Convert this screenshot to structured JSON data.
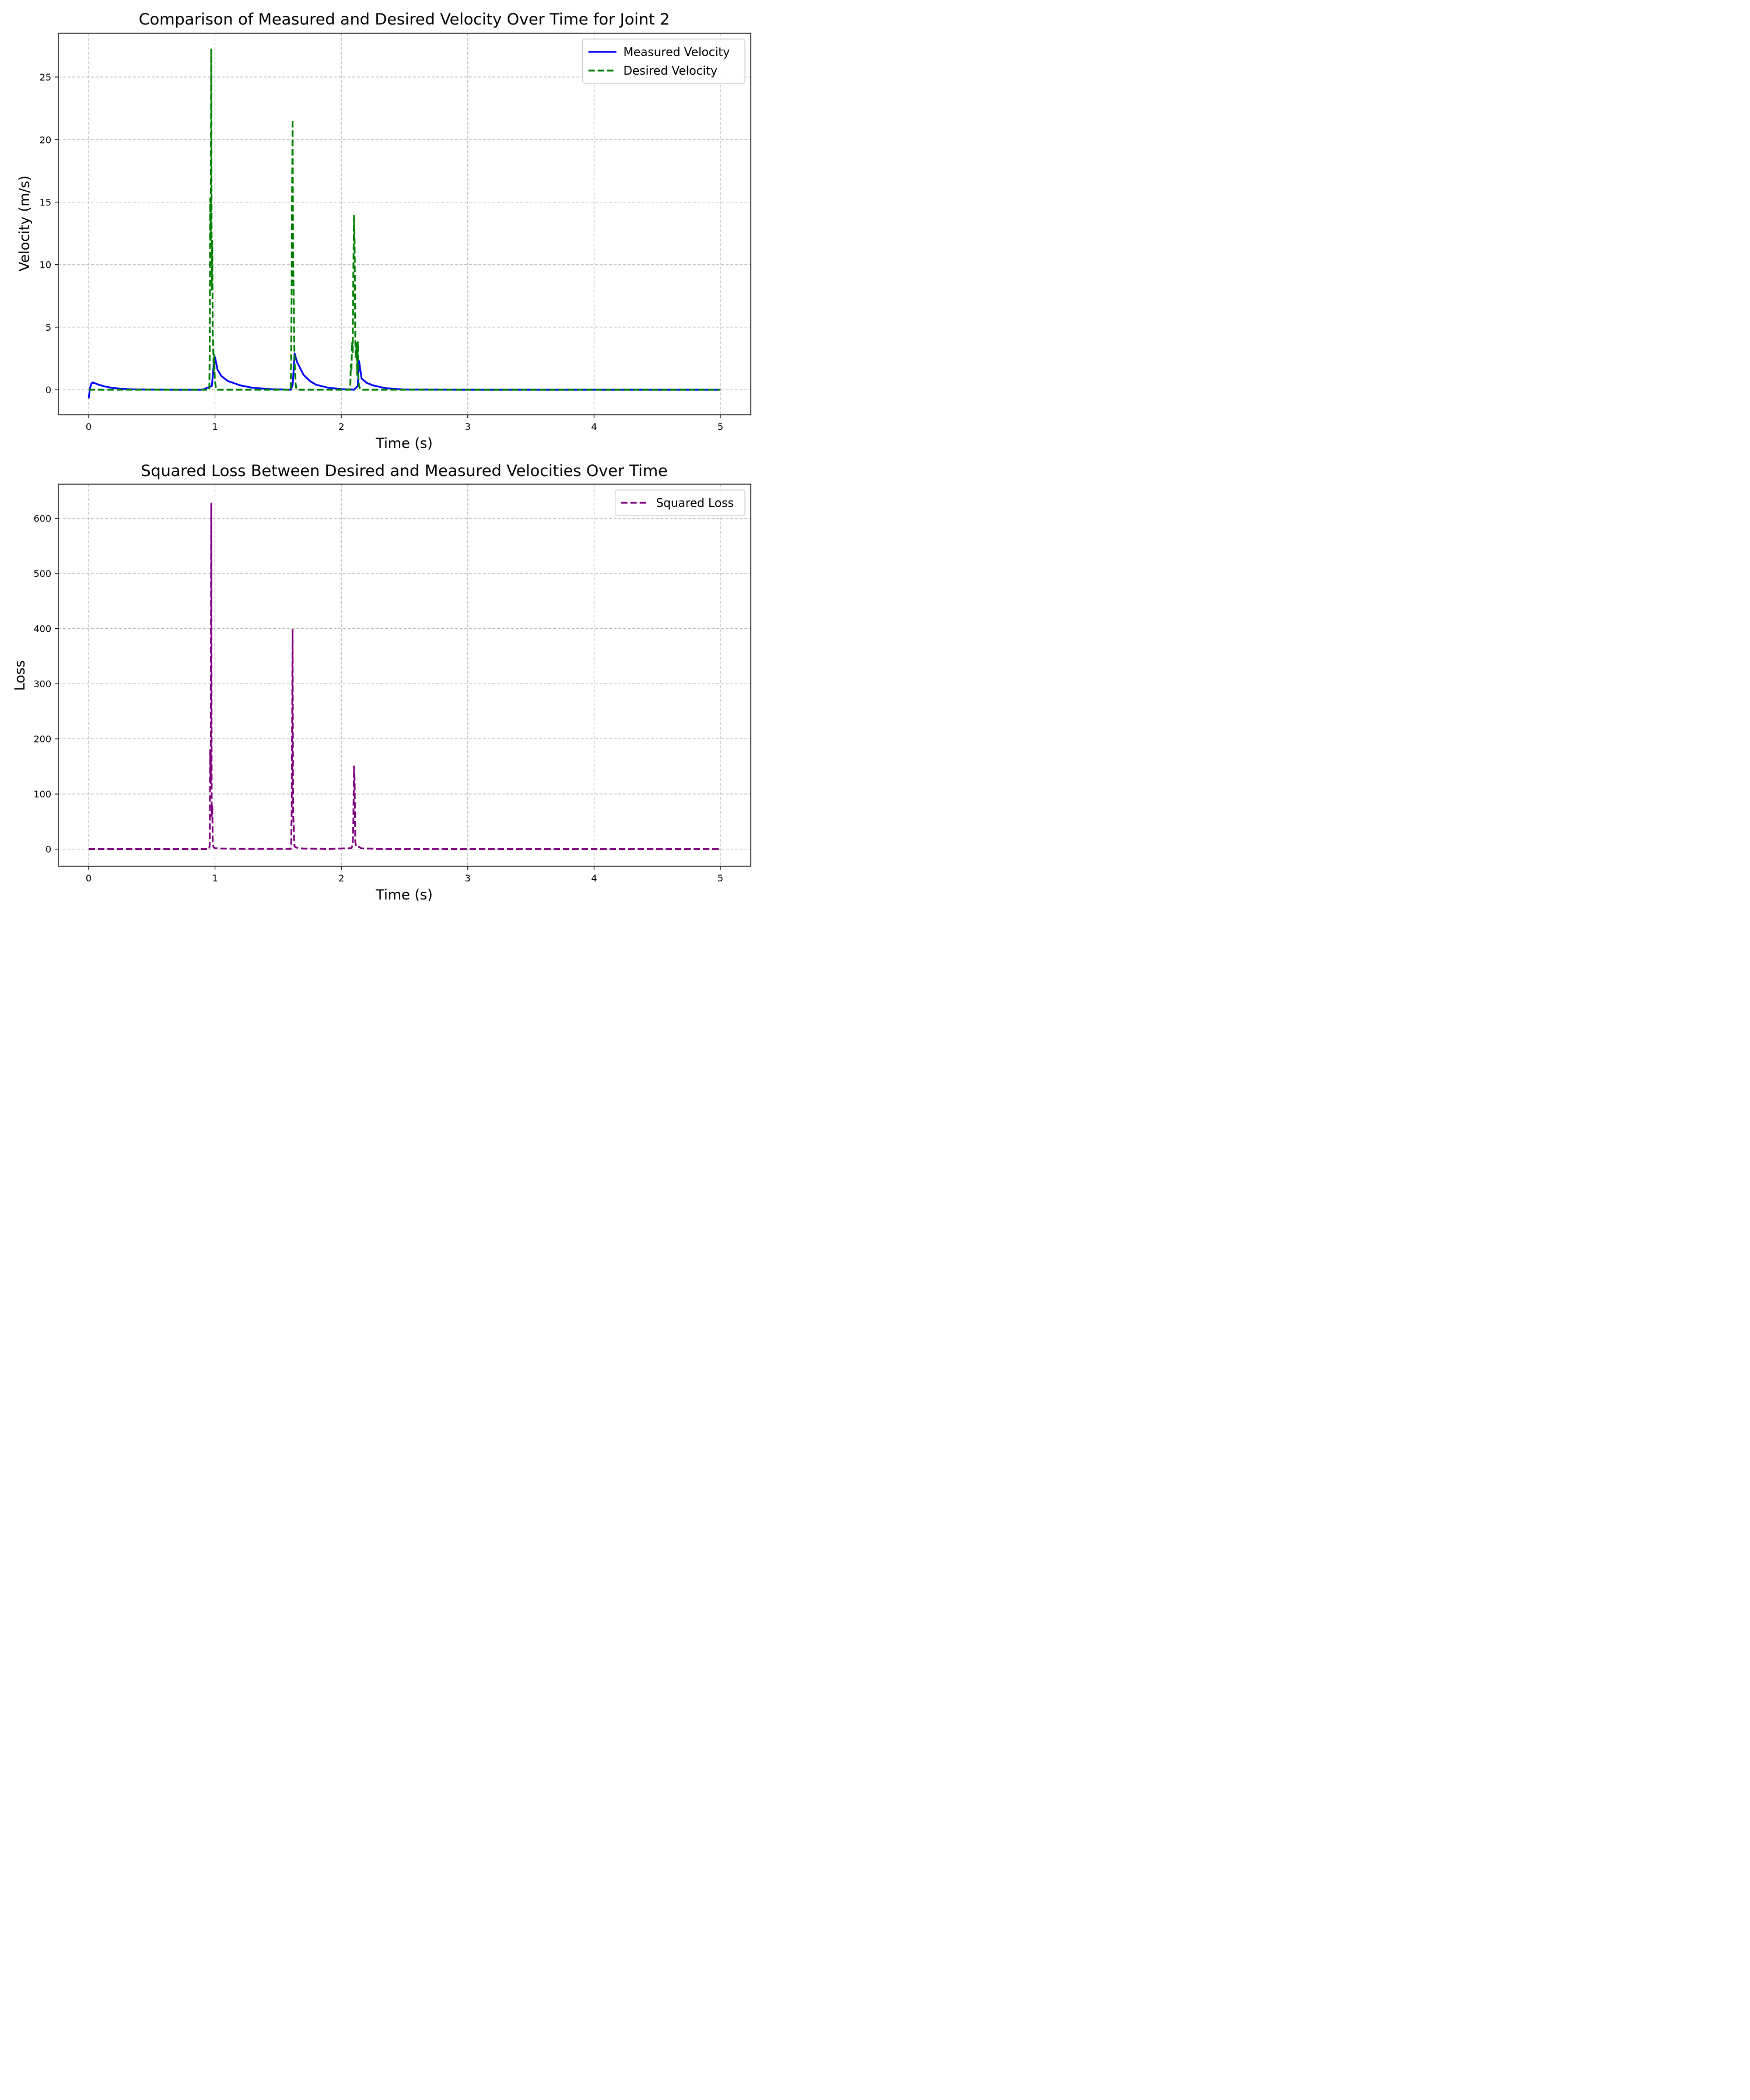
{
  "chart_data": [
    {
      "type": "line",
      "title": "Comparison of Measured and Desired Velocity Over Time for Joint 2",
      "xlabel": "Time (s)",
      "ylabel": "Velocity (m/s)",
      "xlim": [
        -0.24,
        5.24
      ],
      "ylim": [
        -2.0,
        28.5
      ],
      "xticks": [
        0,
        1,
        2,
        3,
        4,
        5
      ],
      "yticks": [
        0,
        5,
        10,
        15,
        20,
        25
      ],
      "grid": true,
      "legend": "top-right",
      "series": [
        {
          "name": "Measured Velocity",
          "color": "#0000ff",
          "style": "solid",
          "x": [
            0.0,
            0.01,
            0.02,
            0.03,
            0.05,
            0.08,
            0.12,
            0.18,
            0.25,
            0.35,
            0.5,
            0.7,
            0.9,
            0.975,
            0.99,
            1.0,
            1.02,
            1.05,
            1.1,
            1.2,
            1.3,
            1.45,
            1.6,
            1.615,
            1.63,
            1.65,
            1.7,
            1.75,
            1.8,
            1.9,
            2.0,
            2.1,
            2.13,
            2.14,
            2.16,
            2.2,
            2.25,
            2.35,
            2.5,
            3.0,
            4.0,
            5.0
          ],
          "y": [
            -0.7,
            0.1,
            0.45,
            0.58,
            0.52,
            0.4,
            0.28,
            0.16,
            0.08,
            0.03,
            0.01,
            0.0,
            0.0,
            0.3,
            2.0,
            2.6,
            1.6,
            1.1,
            0.7,
            0.35,
            0.15,
            0.04,
            0.0,
            0.4,
            2.9,
            2.2,
            1.2,
            0.7,
            0.4,
            0.15,
            0.05,
            0.0,
            0.3,
            2.3,
            0.9,
            0.55,
            0.35,
            0.12,
            0.02,
            0.0,
            0.0,
            0.0
          ]
        },
        {
          "name": "Desired Velocity",
          "color": "#008000",
          "style": "dashed",
          "x": [
            0.0,
            0.955,
            0.958,
            0.962,
            0.966,
            0.97,
            0.974,
            0.978,
            0.982,
            0.986,
            0.99,
            0.994,
            0.998,
            1.002,
            1.01,
            1.6,
            1.603,
            1.607,
            1.61,
            1.614,
            1.618,
            1.622,
            1.626,
            1.63,
            1.634,
            1.638,
            1.645,
            2.07,
            2.075,
            2.08,
            2.085,
            2.09,
            2.095,
            2.1,
            2.105,
            2.11,
            2.115,
            2.12,
            2.125,
            2.13,
            2.135,
            2.14,
            2.15,
            5.0
          ],
          "y": [
            0.0,
            0.0,
            3.0,
            15.3,
            11.9,
            27.2,
            8.0,
            11.9,
            4.5,
            3.5,
            1.5,
            2.8,
            1.0,
            0.5,
            0.0,
            0.0,
            3.0,
            8.9,
            15.8,
            21.6,
            10.5,
            7.8,
            4.5,
            2.2,
            1.2,
            0.5,
            0.0,
            0.0,
            2.0,
            1.5,
            3.8,
            3.0,
            9.2,
            13.9,
            11.8,
            3.8,
            2.5,
            3.8,
            1.2,
            3.8,
            1.0,
            0.3,
            0.0,
            0.0
          ]
        }
      ]
    },
    {
      "type": "line",
      "title": "Squared Loss Between Desired and Measured Velocities Over Time",
      "xlabel": "Time (s)",
      "ylabel": "Loss",
      "xlim": [
        -0.24,
        5.24
      ],
      "ylim": [
        -31,
        662
      ],
      "xticks": [
        0,
        1,
        2,
        3,
        4,
        5
      ],
      "yticks": [
        0,
        100,
        200,
        300,
        400,
        500,
        600
      ],
      "grid": true,
      "legend": "top-right",
      "series": [
        {
          "name": "Squared Loss",
          "color": "#800080",
          "style": "dashed",
          "x": [
            0.0,
            0.955,
            0.958,
            0.962,
            0.966,
            0.97,
            0.974,
            0.978,
            0.982,
            0.986,
            0.99,
            1.0,
            1.05,
            1.2,
            1.6,
            1.603,
            1.607,
            1.61,
            1.614,
            1.618,
            1.622,
            1.626,
            1.63,
            1.64,
            1.7,
            1.9,
            2.08,
            2.09,
            2.095,
            2.1,
            2.105,
            2.11,
            2.115,
            2.12,
            2.13,
            2.16,
            2.3,
            5.0
          ],
          "y": [
            0.2,
            0.2,
            10.0,
            180.0,
            120.0,
            627.0,
            60.0,
            80.0,
            12.0,
            6.0,
            3.0,
            2.0,
            1.0,
            0.5,
            0.5,
            10.0,
            70.0,
            210.0,
            398.0,
            65.0,
            45.0,
            15.0,
            5.0,
            3.0,
            1.0,
            0.3,
            2.0,
            8.0,
            50.0,
            150.0,
            125.0,
            12.0,
            8.0,
            4.0,
            5.0,
            1.5,
            0.3,
            0.2
          ]
        }
      ]
    }
  ]
}
